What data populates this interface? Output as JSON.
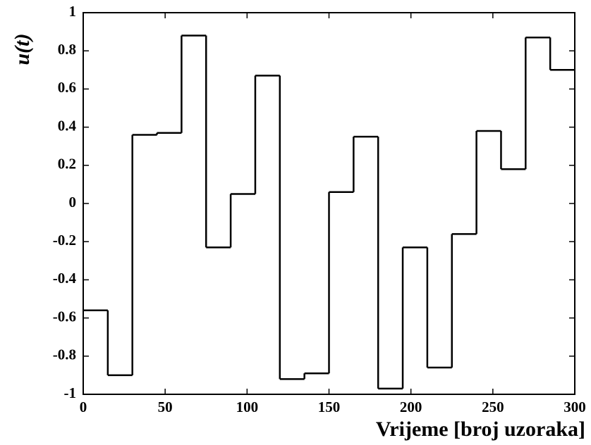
{
  "chart_data": {
    "type": "step",
    "xlabel": "Vrijeme [broj uzoraka]",
    "ylabel": "u(t)",
    "x": [
      0,
      15,
      30,
      45,
      60,
      75,
      90,
      105,
      120,
      135,
      150,
      165,
      180,
      195,
      210,
      225,
      240,
      255,
      270,
      285
    ],
    "values": [
      -0.56,
      -0.9,
      0.36,
      0.37,
      0.88,
      -0.23,
      0.05,
      0.67,
      -0.92,
      -0.89,
      0.06,
      0.35,
      -0.97,
      -0.23,
      -0.86,
      -0.16,
      0.38,
      0.18,
      0.87,
      0.7
    ],
    "color": "#000000",
    "xlim": [
      0,
      300
    ],
    "xticks": [
      0,
      50,
      100,
      150,
      200,
      250,
      300
    ],
    "ylim": [
      -1,
      1
    ],
    "yticks": [
      -1,
      -0.8,
      -0.6,
      -0.4,
      -0.2,
      0,
      0.2,
      0.4,
      0.6,
      0.8,
      1
    ],
    "grid": false
  }
}
